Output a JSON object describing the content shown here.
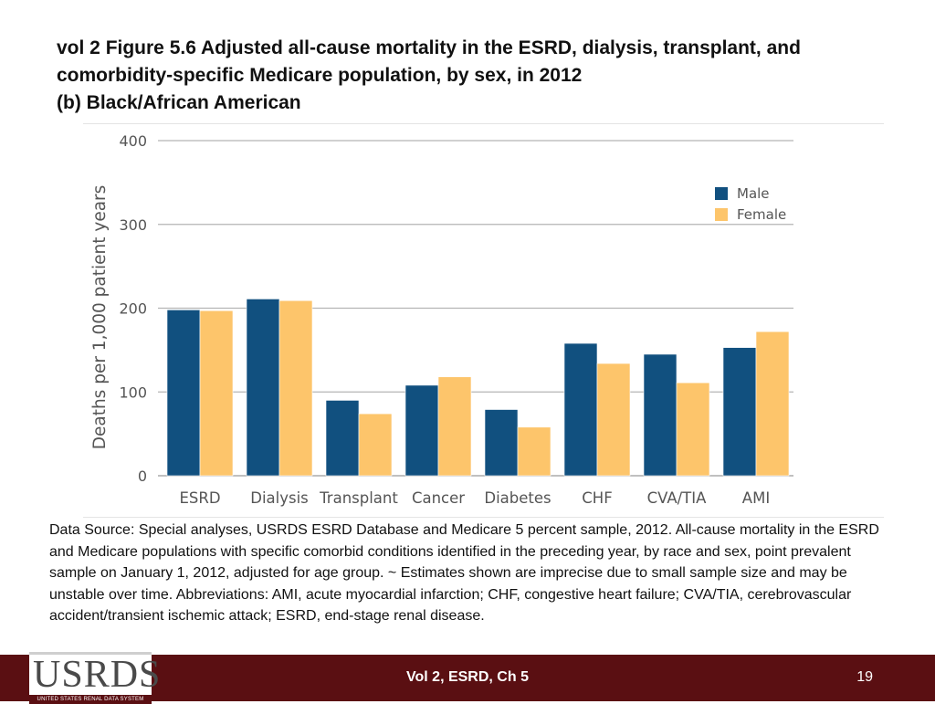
{
  "title": {
    "line1": "vol 2 Figure 5.6 Adjusted all-cause mortality in the ESRD, dialysis, transplant, and",
    "line2": "comorbidity-specific Medicare population, by sex, in 2012",
    "line3": "(b) Black/African American"
  },
  "chart_data": {
    "type": "bar",
    "title": "",
    "xlabel": "",
    "ylabel": "Deaths per 1,000 patient years",
    "ylim": [
      0,
      400
    ],
    "yticks": [
      0,
      100,
      200,
      300,
      400
    ],
    "grid": true,
    "legend_position": "top-right",
    "categories": [
      "ESRD",
      "Dialysis",
      "Transplant",
      "Cancer",
      "Diabetes",
      "CHF",
      "CVA/TIA",
      "AMI"
    ],
    "series": [
      {
        "name": "Male",
        "color": "#11507f",
        "values": [
          198,
          211,
          90,
          108,
          79,
          158,
          145,
          153
        ]
      },
      {
        "name": "Female",
        "color": "#fdc56b",
        "values": [
          197,
          209,
          74,
          118,
          58,
          134,
          111,
          172
        ]
      }
    ]
  },
  "source": "Data Source: Special analyses, USRDS ESRD Database and Medicare 5 percent sample, 2012. All-cause mortality in the ESRD and Medicare populations with specific comorbid conditions identified in the preceding year, by race and sex, point prevalent sample on January 1, 2012, adjusted for age group. ~ Estimates shown are imprecise due to small sample size and may be unstable over time. Abbreviations: AMI, acute myocardial infarction; CHF, congestive heart failure; CVA/TIA, cerebrovascular accident/transient ischemic attack; ESRD, end-stage renal disease.",
  "footer": {
    "logo_text": "USRDS",
    "logo_subtitle": "UNITED STATES RENAL DATA SYSTEM",
    "center_text": "Vol 2, ESRD, Ch 5",
    "page_number": "19",
    "bar_color": "#5a0f12"
  }
}
